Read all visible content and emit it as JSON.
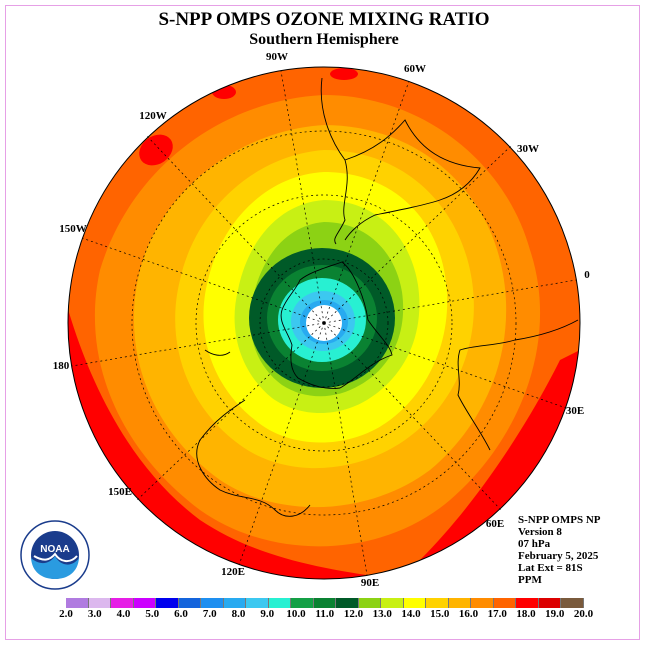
{
  "header": {
    "title": "S-NPP OMPS OZONE MIXING RATIO",
    "subtitle": "Southern Hemisphere"
  },
  "info": {
    "lines": [
      "S-NPP OMPS NP",
      "Version 8",
      "07 hPa",
      "February 5, 2025",
      "Lat Ext = 81S",
      "PPM"
    ]
  },
  "longitude_labels": [
    "90W",
    "60W",
    "30W",
    "0",
    "30E",
    "60E",
    "90E",
    "120E",
    "150E",
    "180",
    "150W",
    "120W"
  ],
  "colorbar": {
    "colors": [
      "#b07be0",
      "#dcb8ee",
      "#e61ee6",
      "#cc00ff",
      "#0000ee",
      "#1464dc",
      "#1e8ff0",
      "#28aaf0",
      "#3cc8f0",
      "#28f0d2",
      "#14a046",
      "#0a8232",
      "#005a28",
      "#8cd214",
      "#c8f014",
      "#ffff00",
      "#ffd200",
      "#ffb400",
      "#ff8c00",
      "#ff6400",
      "#ff0000",
      "#dc0000",
      "#7a5a3c"
    ],
    "tick_labels": [
      "2.0",
      "3.0",
      "4.0",
      "5.0",
      "6.0",
      "7.0",
      "8.0",
      "9.0",
      "10.0",
      "11.0",
      "12.0",
      "13.0",
      "14.0",
      "15.0",
      "16.0",
      "17.0",
      "18.0",
      "19.0",
      "20.0"
    ]
  },
  "logo": {
    "text": "NOAA"
  },
  "field_colors": {
    "outer": "#ff6400",
    "band1": "#ff8c00",
    "band2": "#ffb400",
    "band3": "#ffd200",
    "band4": "#ffff00",
    "band5": "#c8f014",
    "band6": "#8cd214",
    "ring_dark": "#005a28",
    "ring_mid": "#0a8232",
    "core1": "#28f0d2",
    "core2": "#3cc8f0",
    "core3": "#28aaf0",
    "center": "#ffffff",
    "hot": "#ff0000"
  }
}
